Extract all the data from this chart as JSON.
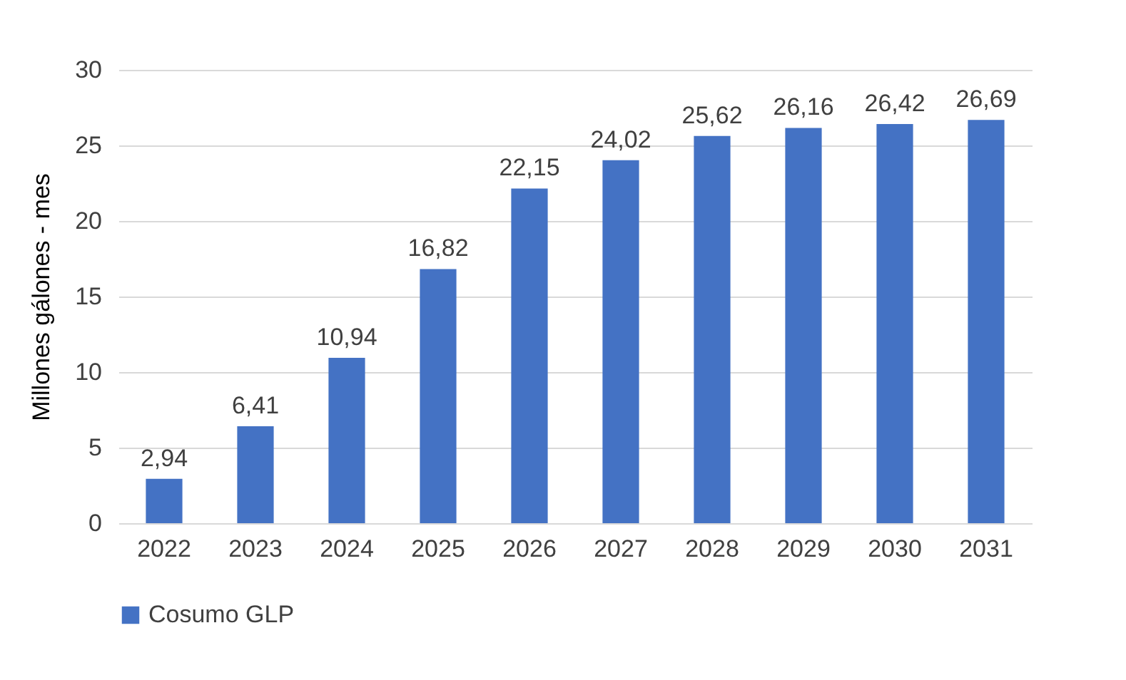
{
  "chart_data": {
    "type": "bar",
    "ylabel": "Millones gálones - mes",
    "categories": [
      "2022",
      "2023",
      "2024",
      "2025",
      "2026",
      "2027",
      "2028",
      "2029",
      "2030",
      "2031"
    ],
    "series": [
      {
        "name": "Cosumo GLP",
        "color": "#4472c4",
        "values": [
          2.94,
          6.41,
          10.94,
          16.82,
          22.15,
          24.02,
          25.62,
          26.16,
          26.42,
          26.69
        ],
        "value_labels": [
          "2,94",
          "6,41",
          "10,94",
          "16,82",
          "22,15",
          "24,02",
          "25,62",
          "26,16",
          "26,42",
          "26,69"
        ]
      }
    ],
    "ylim": [
      0,
      30
    ],
    "yticks": [
      0,
      5,
      10,
      15,
      20,
      25,
      30
    ],
    "grid": "y",
    "legend": "bottom"
  }
}
